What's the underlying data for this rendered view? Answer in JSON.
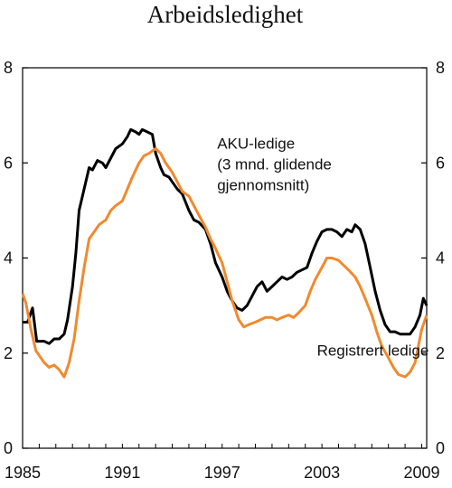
{
  "chart_data": {
    "type": "line",
    "title": "Arbeidsledighet",
    "xlabel": "",
    "ylabel": "",
    "xlim": [
      1985,
      2009.3
    ],
    "ylim": [
      0,
      8
    ],
    "x_ticks": [
      1985,
      1991,
      1997,
      2003,
      2009
    ],
    "y_ticks": [
      0,
      2,
      4,
      6,
      8
    ],
    "grid": false,
    "series": [
      {
        "name": "AKU-ledige (3 mnd. glidende gjennomsnitt)",
        "color": "#000000",
        "x": [
          1985.0,
          1985.3,
          1985.6,
          1985.85,
          1986.0,
          1986.3,
          1986.6,
          1986.9,
          1987.2,
          1987.5,
          1987.7,
          1988.0,
          1988.2,
          1988.4,
          1988.6,
          1988.8,
          1989.0,
          1989.2,
          1989.5,
          1989.8,
          1990.0,
          1990.3,
          1990.6,
          1991.0,
          1991.3,
          1991.5,
          1991.8,
          1992.0,
          1992.2,
          1992.5,
          1992.8,
          1993.0,
          1993.3,
          1993.5,
          1993.8,
          1994.0,
          1994.3,
          1994.6,
          1995.0,
          1995.3,
          1995.6,
          1996.0,
          1996.3,
          1996.6,
          1997.0,
          1997.3,
          1997.6,
          1997.9,
          1998.2,
          1998.5,
          1998.8,
          1999.1,
          1999.4,
          1999.7,
          2000.0,
          2000.3,
          2000.6,
          2000.9,
          2001.2,
          2001.5,
          2001.8,
          2002.1,
          2002.4,
          2002.7,
          2003.0,
          2003.3,
          2003.6,
          2003.9,
          2004.2,
          2004.5,
          2004.8,
          2005.0,
          2005.3,
          2005.6,
          2005.9,
          2006.2,
          2006.5,
          2006.8,
          2007.1,
          2007.4,
          2007.7,
          2008.0,
          2008.3,
          2008.6,
          2008.9,
          2009.1,
          2009.3
        ],
        "values": [
          2.65,
          2.65,
          2.95,
          2.25,
          2.25,
          2.25,
          2.2,
          2.3,
          2.3,
          2.4,
          2.7,
          3.4,
          4.1,
          5.0,
          5.3,
          5.6,
          5.9,
          5.85,
          6.05,
          6.0,
          5.9,
          6.1,
          6.3,
          6.4,
          6.55,
          6.7,
          6.65,
          6.6,
          6.7,
          6.65,
          6.6,
          6.2,
          5.9,
          5.75,
          5.7,
          5.6,
          5.45,
          5.35,
          5.0,
          4.8,
          4.75,
          4.6,
          4.3,
          3.9,
          3.6,
          3.3,
          3.1,
          2.95,
          2.9,
          3.0,
          3.2,
          3.4,
          3.5,
          3.3,
          3.4,
          3.5,
          3.6,
          3.55,
          3.6,
          3.7,
          3.75,
          3.8,
          4.1,
          4.35,
          4.55,
          4.6,
          4.6,
          4.55,
          4.45,
          4.6,
          4.55,
          4.7,
          4.6,
          4.3,
          3.8,
          3.3,
          2.9,
          2.6,
          2.45,
          2.45,
          2.4,
          2.4,
          2.4,
          2.55,
          2.8,
          3.15,
          3.0
        ]
      },
      {
        "name": "Registrert ledige",
        "color": "#F08A2E",
        "x": [
          1985.0,
          1985.2,
          1985.5,
          1985.8,
          1986.0,
          1986.3,
          1986.6,
          1986.9,
          1987.2,
          1987.5,
          1987.8,
          1988.1,
          1988.4,
          1988.7,
          1989.0,
          1989.3,
          1989.6,
          1990.0,
          1990.3,
          1990.6,
          1991.0,
          1991.3,
          1991.6,
          1992.0,
          1992.3,
          1992.6,
          1993.0,
          1993.3,
          1993.6,
          1994.0,
          1994.3,
          1994.6,
          1995.0,
          1995.3,
          1995.6,
          1996.0,
          1996.3,
          1996.6,
          1997.0,
          1997.3,
          1997.6,
          1998.0,
          1998.3,
          1998.6,
          1999.0,
          1999.3,
          1999.6,
          2000.0,
          2000.3,
          2000.6,
          2001.0,
          2001.3,
          2001.6,
          2002.0,
          2002.3,
          2002.6,
          2003.0,
          2003.3,
          2003.6,
          2004.0,
          2004.3,
          2004.6,
          2005.0,
          2005.3,
          2005.6,
          2006.0,
          2006.3,
          2006.6,
          2007.0,
          2007.3,
          2007.6,
          2008.0,
          2008.3,
          2008.6,
          2009.0,
          2009.3
        ],
        "values": [
          3.25,
          3.05,
          2.5,
          2.05,
          1.95,
          1.8,
          1.7,
          1.75,
          1.65,
          1.5,
          1.8,
          2.3,
          3.1,
          3.8,
          4.4,
          4.55,
          4.7,
          4.8,
          5.0,
          5.1,
          5.2,
          5.45,
          5.7,
          6.0,
          6.15,
          6.2,
          6.3,
          6.2,
          6.0,
          5.8,
          5.6,
          5.4,
          5.3,
          5.1,
          4.9,
          4.65,
          4.4,
          4.2,
          3.9,
          3.5,
          3.1,
          2.7,
          2.55,
          2.6,
          2.65,
          2.7,
          2.75,
          2.75,
          2.7,
          2.75,
          2.8,
          2.75,
          2.85,
          3.0,
          3.3,
          3.55,
          3.8,
          4.0,
          4.0,
          3.95,
          3.85,
          3.75,
          3.6,
          3.4,
          3.15,
          2.8,
          2.45,
          2.15,
          1.9,
          1.7,
          1.55,
          1.5,
          1.6,
          1.8,
          2.5,
          2.8
        ]
      }
    ],
    "annotations": [
      {
        "text": [
          "AKU-ledige",
          "(3 mnd. glidende",
          "gjennomsnitt)"
        ],
        "anchor_x": 1996.7,
        "anchor_y": 6.3
      },
      {
        "text": [
          "Registrert ledige"
        ],
        "anchor_x": 2002.7,
        "anchor_y": 1.95
      }
    ]
  }
}
